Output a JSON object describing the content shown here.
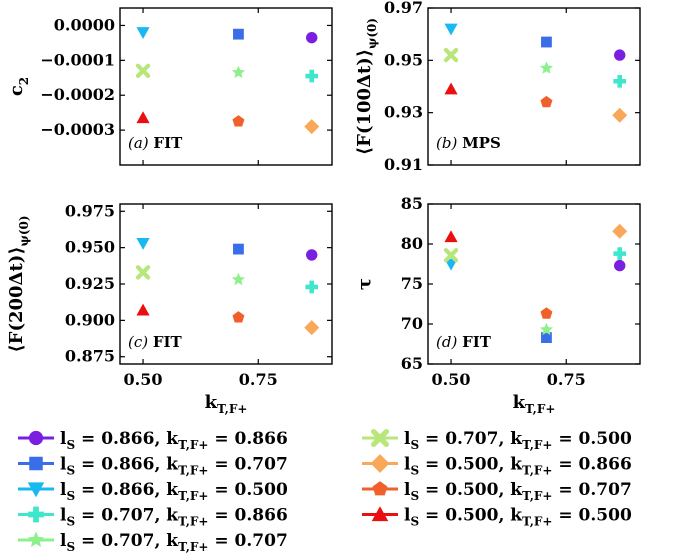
{
  "chart_data": [
    {
      "type": "scatter",
      "panel_label": "(a)",
      "panel_tag": "FIT",
      "ylabel": "c",
      "ylabel_sub": "2",
      "xlabel": "",
      "xlim": [
        0.45,
        0.91
      ],
      "ylim": [
        -0.0004,
        5e-05
      ],
      "xticks": [
        0.5,
        0.75
      ],
      "xtick_labels": [
        "",
        ""
      ],
      "yticks": [
        0.0,
        -0.0001,
        -0.0002,
        -0.0003
      ],
      "ytick_labels": [
        "0.0000",
        "−0.0001",
        "−0.0002",
        "−0.0003"
      ],
      "points": [
        {
          "series": 0,
          "x": 0.866,
          "y": -3.5e-05
        },
        {
          "series": 1,
          "x": 0.707,
          "y": -2.5e-05
        },
        {
          "series": 2,
          "x": 0.5,
          "y": -2e-05
        },
        {
          "series": 3,
          "x": 0.866,
          "y": -0.000145
        },
        {
          "series": 4,
          "x": 0.707,
          "y": -0.000135
        },
        {
          "series": 5,
          "x": 0.5,
          "y": -0.00013
        },
        {
          "series": 6,
          "x": 0.866,
          "y": -0.00029
        },
        {
          "series": 7,
          "x": 0.707,
          "y": -0.000275
        },
        {
          "series": 8,
          "x": 0.5,
          "y": -0.000265
        }
      ]
    },
    {
      "type": "scatter",
      "panel_label": "(b)",
      "panel_tag": "MPS",
      "ylabel": "⟨F(100Δt)⟩",
      "ylabel_sub": "ψ(0)",
      "xlabel": "",
      "xlim": [
        0.45,
        0.91
      ],
      "ylim": [
        0.91,
        0.97
      ],
      "xticks": [
        0.5,
        0.75
      ],
      "xtick_labels": [
        "",
        ""
      ],
      "yticks": [
        0.91,
        0.93,
        0.95,
        0.97
      ],
      "ytick_labels": [
        "0.91",
        "0.93",
        "0.95",
        "0.97"
      ],
      "points": [
        {
          "series": 0,
          "x": 0.866,
          "y": 0.952
        },
        {
          "series": 1,
          "x": 0.707,
          "y": 0.957
        },
        {
          "series": 2,
          "x": 0.5,
          "y": 0.962
        },
        {
          "series": 3,
          "x": 0.866,
          "y": 0.942
        },
        {
          "series": 4,
          "x": 0.707,
          "y": 0.947
        },
        {
          "series": 5,
          "x": 0.5,
          "y": 0.952
        },
        {
          "series": 6,
          "x": 0.866,
          "y": 0.929
        },
        {
          "series": 7,
          "x": 0.707,
          "y": 0.934
        },
        {
          "series": 8,
          "x": 0.5,
          "y": 0.939
        }
      ]
    },
    {
      "type": "scatter",
      "panel_label": "(c)",
      "panel_tag": "FIT",
      "ylabel": "⟨F(200Δt)⟩",
      "ylabel_sub": "ψ(0)",
      "xlabel": "k",
      "xlabel_sub": "T,F+",
      "xlim": [
        0.45,
        0.91
      ],
      "ylim": [
        0.87,
        0.98
      ],
      "xticks": [
        0.5,
        0.75
      ],
      "xtick_labels": [
        "0.50",
        "0.75"
      ],
      "yticks": [
        0.875,
        0.9,
        0.925,
        0.95,
        0.975
      ],
      "ytick_labels": [
        "0.875",
        "0.900",
        "0.925",
        "0.950",
        "0.975"
      ],
      "points": [
        {
          "series": 0,
          "x": 0.866,
          "y": 0.945
        },
        {
          "series": 1,
          "x": 0.707,
          "y": 0.949
        },
        {
          "series": 2,
          "x": 0.5,
          "y": 0.953
        },
        {
          "series": 3,
          "x": 0.866,
          "y": 0.923
        },
        {
          "series": 4,
          "x": 0.707,
          "y": 0.928
        },
        {
          "series": 5,
          "x": 0.5,
          "y": 0.933
        },
        {
          "series": 6,
          "x": 0.866,
          "y": 0.895
        },
        {
          "series": 7,
          "x": 0.707,
          "y": 0.902
        },
        {
          "series": 8,
          "x": 0.5,
          "y": 0.907
        }
      ]
    },
    {
      "type": "scatter",
      "panel_label": "(d)",
      "panel_tag": "FIT",
      "ylabel": "τ",
      "ylabel_sub": "",
      "xlabel": "k",
      "xlabel_sub": "T,F+",
      "xlim": [
        0.45,
        0.91
      ],
      "ylim": [
        65,
        85
      ],
      "xticks": [
        0.5,
        0.75
      ],
      "xtick_labels": [
        "0.50",
        "0.75"
      ],
      "yticks": [
        65,
        70,
        75,
        80,
        85
      ],
      "ytick_labels": [
        "65",
        "70",
        "75",
        "80",
        "85"
      ],
      "points": [
        {
          "series": 0,
          "x": 0.866,
          "y": 77.3
        },
        {
          "series": 1,
          "x": 0.707,
          "y": 68.3
        },
        {
          "series": 2,
          "x": 0.5,
          "y": 77.5
        },
        {
          "series": 3,
          "x": 0.866,
          "y": 78.8
        },
        {
          "series": 4,
          "x": 0.707,
          "y": 69.3
        },
        {
          "series": 5,
          "x": 0.5,
          "y": 78.6
        },
        {
          "series": 6,
          "x": 0.866,
          "y": 81.6
        },
        {
          "series": 7,
          "x": 0.707,
          "y": 71.3
        },
        {
          "series": 8,
          "x": 0.5,
          "y": 80.9
        }
      ]
    }
  ],
  "legend": {
    "entries": [
      {
        "series": 0,
        "marker": "circle",
        "color": "#7a1fe0",
        "l_val": "0.866",
        "k_val": "0.866"
      },
      {
        "series": 1,
        "marker": "square",
        "color": "#3a6ee8",
        "l_val": "0.866",
        "k_val": "0.707"
      },
      {
        "series": 2,
        "marker": "triangle-down",
        "color": "#1ab8f0",
        "l_val": "0.866",
        "k_val": "0.500"
      },
      {
        "series": 3,
        "marker": "plus",
        "color": "#3ee6cc",
        "l_val": "0.707",
        "k_val": "0.866"
      },
      {
        "series": 4,
        "marker": "star",
        "color": "#8cf08c",
        "l_val": "0.707",
        "k_val": "0.707"
      },
      {
        "series": 5,
        "marker": "x",
        "color": "#b8e67a",
        "l_val": "0.707",
        "k_val": "0.500"
      },
      {
        "series": 6,
        "marker": "diamond",
        "color": "#f8a858",
        "l_val": "0.500",
        "k_val": "0.866"
      },
      {
        "series": 7,
        "marker": "pentagon",
        "color": "#f0602a",
        "l_val": "0.500",
        "k_val": "0.707"
      },
      {
        "series": 8,
        "marker": "triangle-up",
        "color": "#e81010",
        "l_val": "0.500",
        "k_val": "0.500"
      }
    ],
    "l_symbol": "l",
    "l_sub": "S",
    "k_symbol": "k",
    "k_sub": "T,F+",
    "eq": " = ",
    "sep": ", "
  }
}
